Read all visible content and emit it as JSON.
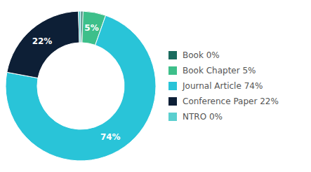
{
  "chart_data": {
    "type": "pie",
    "categories": [
      "Book 0%",
      "Book Chapter 5%",
      "Journal Article 74%",
      "Conference Paper 22%",
      "NTRO 0%"
    ],
    "values": [
      0.5,
      5,
      74,
      22,
      0.5
    ],
    "value_labels": [
      null,
      "5%",
      "74%",
      "22%",
      null
    ],
    "colors": [
      "#1a6b5e",
      "#3dbf8a",
      "#29c4d8",
      "#0d1f36",
      "#5acfcf"
    ],
    "data_labels": true,
    "legend": "right"
  }
}
